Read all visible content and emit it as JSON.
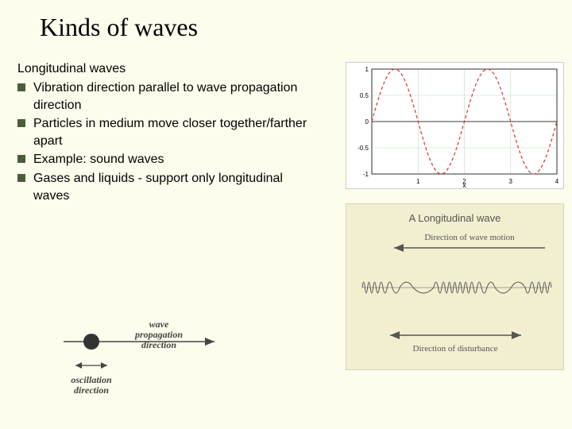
{
  "title": "Kinds of waves",
  "subtitle": "Longitudinal waves",
  "bullets": [
    "Vibration direction parallel to wave propagation direction",
    "Particles in medium move closer together/farther apart",
    "Example: sound waves",
    "Gases and liquids - support only longitudinal waves"
  ],
  "sine_chart": {
    "type": "line",
    "xlim": [
      0,
      4
    ],
    "ylim": [
      -1,
      1
    ],
    "xticks": [
      0,
      1,
      2,
      3,
      4
    ],
    "yticks": [
      -1,
      -0.5,
      0,
      0.5,
      1
    ],
    "ytick_labels": [
      "-1",
      "-0.5",
      "0",
      "0.5",
      "1"
    ],
    "xlabel": "x",
    "line_color": "#d83030",
    "line_dash": "4,3",
    "line_width": 1.2,
    "grid_color": "#b8e0b8",
    "background_color": "#ffffff",
    "axis_color": "#000000",
    "tick_fontsize": 8,
    "periods": 2,
    "amplitude": 1
  },
  "long_wave_panel": {
    "title": "A Longitudinal wave",
    "top_arrow_label": "Direction of wave motion",
    "bottom_arrow_label": "Direction of disturbance",
    "background_color": "#f2eed0",
    "coil_color": "#555555",
    "arrow_color": "#555555",
    "title_fontsize": 13,
    "label_fontsize": 11
  },
  "prop_diagram": {
    "wave_label": "wave\npropagation\ndirection",
    "osc_label": "oscillation\ndirection",
    "line_color": "#444444",
    "dot_color": "#333333",
    "label_fontsize": 12
  },
  "colors": {
    "slide_background": "#fdfded",
    "bullet_marker": "#4a5d3a",
    "title_color": "#000000",
    "text_color": "#000000"
  }
}
